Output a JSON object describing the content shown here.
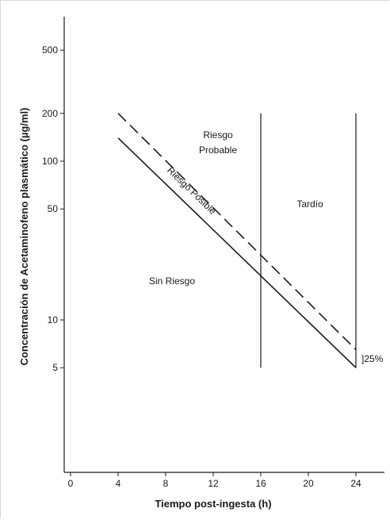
{
  "chart_data": {
    "type": "line",
    "title": "",
    "xlabel": "Tiempo post-ingesta (h)",
    "ylabel": "Concentración de Acetaminofeno plasmático (µg/ml)",
    "x_ticks": [
      0,
      4,
      8,
      12,
      16,
      20,
      24
    ],
    "y_ticks": [
      5,
      10,
      50,
      100,
      200,
      500
    ],
    "y_scale": "log",
    "xlim": [
      -0.5,
      26.5
    ],
    "ylim": [
      1,
      900
    ],
    "series": [
      {
        "style": "dashed",
        "x": [
          4,
          24
        ],
        "y": [
          200,
          6.5
        ]
      },
      {
        "style": "solid",
        "x": [
          4,
          24
        ],
        "y": [
          140,
          5
        ]
      }
    ],
    "vertical_lines": [
      {
        "x": 16,
        "y": [
          5,
          200
        ]
      },
      {
        "x": 24,
        "y": [
          5,
          200
        ]
      }
    ],
    "regions": [
      {
        "id": "riesgo-probable",
        "lines": [
          "Riesgo",
          "Probable"
        ]
      },
      {
        "id": "riesgo-posible",
        "label": "Riesgo Posible"
      },
      {
        "id": "tardio",
        "label": "Tardío"
      },
      {
        "id": "sin-riesgo",
        "label": "Sin Riesgo"
      }
    ],
    "annotation": "]25%"
  }
}
